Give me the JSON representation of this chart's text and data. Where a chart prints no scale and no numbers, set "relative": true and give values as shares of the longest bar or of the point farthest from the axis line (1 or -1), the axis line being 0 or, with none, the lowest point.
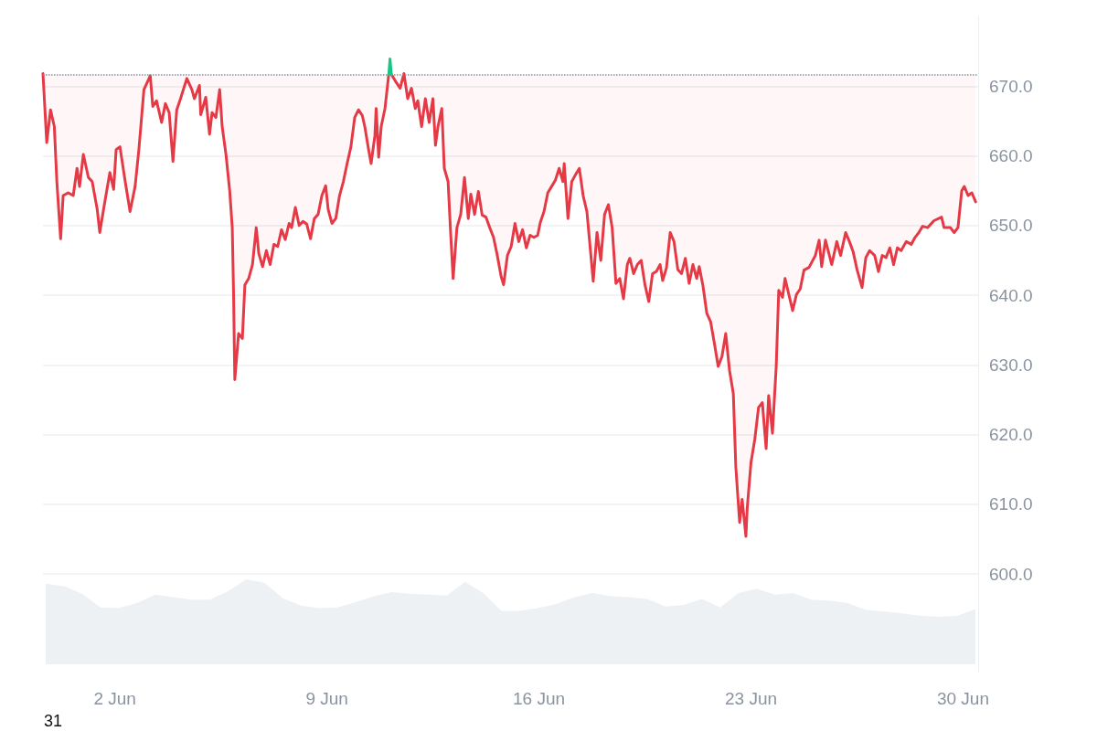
{
  "chart_data": [
    {
      "type": "line",
      "marker": "none",
      "grid": "y",
      "xlim": [
        "--05-30T15:00",
        "--06-30T12:00"
      ],
      "ylim": [
        586,
        680
      ],
      "yticks": [
        {
          "value": 600,
          "label": "600.0"
        },
        {
          "value": 610,
          "label": "610.0"
        },
        {
          "value": 620,
          "label": "620.0"
        },
        {
          "value": 630,
          "label": "630.0"
        },
        {
          "value": 640,
          "label": "640.0"
        },
        {
          "value": 650,
          "label": "650.0"
        },
        {
          "value": 660,
          "label": "660.0"
        },
        {
          "value": 670,
          "label": "670.0"
        }
      ],
      "xticks": [
        {
          "value": "--06-02",
          "label": "2 Jun"
        },
        {
          "value": "--06-09",
          "label": "9 Jun"
        },
        {
          "value": "--06-16",
          "label": "16 Jun"
        },
        {
          "value": "--06-23",
          "label": "23 Jun"
        },
        {
          "value": "--06-30",
          "label": "30 Jun"
        }
      ],
      "annotations": [
        "31"
      ],
      "ref_lines": [
        {
          "axis": "y",
          "value": 671.7,
          "color": "#8a939f",
          "line_style": "dotted"
        }
      ],
      "series": [
        {
          "color": "#e63946",
          "x": [
            "--05-30T15:00",
            "--05-30T18:00",
            "--05-30T21:00",
            "--05-31T00:00",
            "--05-31T02:00",
            "--05-31T05:00",
            "--05-31T07:00",
            "--05-31T11:00",
            "--05-31T15:00",
            "--05-31T18:00",
            "--05-31T20:00",
            "--05-31T23:00",
            "--06-01T03:00",
            "--06-01T06:00",
            "--06-01T10:00",
            "--06-01T12:00",
            "--06-01T15:00",
            "--06-01T20:00",
            "--06-01T23:00",
            "--06-02T01:00",
            "--06-02T04:00",
            "--06-02T08:00",
            "--06-02T12:00",
            "--06-02T16:00",
            "--06-02T19:00",
            "--06-02T23:00",
            "--06-03T04:00",
            "--06-03T06:00",
            "--06-03T09:00",
            "--06-03T13:00",
            "--06-03T16:00",
            "--06-03T19:00",
            "--06-03T22:00",
            "--06-04T01:00",
            "--06-04T04:00",
            "--06-04T09:00",
            "--06-04T13:00",
            "--06-04T15:00",
            "--06-04T19:00",
            "--06-04T20:00",
            "--06-05T00:00",
            "--06-05T03:00",
            "--06-05T05:00",
            "--06-05T08:00",
            "--06-05T11:00",
            "--06-05T13:00",
            "--06-05T16:00",
            "--06-05T19:00",
            "--06-05T21:00",
            "--06-05T22:00",
            "--06-05T23:00",
            "--06-06T02:00",
            "--06-06T05:00",
            "--06-06T07:00",
            "--06-06T10:00",
            "--06-06T13:00",
            "--06-06T16:00",
            "--06-06T18:00",
            "--06-06T21:00",
            "--06-07T00:00",
            "--06-07T03:00",
            "--06-07T06:00",
            "--06-07T09:00",
            "--06-07T12:00",
            "--06-07T15:00",
            "--06-07T18:00",
            "--06-07T20:00",
            "--06-07T23:00",
            "--06-08T02:00",
            "--06-08T05:00",
            "--06-08T08:00",
            "--06-08T11:00",
            "--06-08T14:00",
            "--06-08T17:00",
            "--06-08T20:00",
            "--06-08T23:00",
            "--06-09T01:00",
            "--06-09T04:00",
            "--06-09T07:00",
            "--06-09T10:00",
            "--06-09T13:00",
            "--06-09T16:00",
            "--06-09T19:00",
            "--06-09T22:00",
            "--06-10T01:00",
            "--06-10T04:00",
            "--06-10T06:00",
            "--06-10T09:00",
            "--06-10T11:00",
            "--06-10T14:00",
            "--06-10T15:00",
            "--06-10T17:00",
            "--06-10T19:00",
            "--06-10T22:00",
            "--06-11T01:00",
            "--06-11T02:00",
            "--06-11T03:00",
            "--06-11T07:00",
            "--06-11T10:00",
            "--06-11T13:00",
            "--06-11T16:00",
            "--06-11T19:00",
            "--06-11T22:00",
            "--06-12T00:00",
            "--06-12T03:00",
            "--06-12T06:00",
            "--06-12T09:00",
            "--06-12T12:00",
            "--06-12T14:00",
            "--06-12T16:00",
            "--06-12T19:00",
            "--06-12T21:00",
            "--06-13T00:00",
            "--06-13T02:00",
            "--06-13T04:00",
            "--06-13T07:00",
            "--06-13T10:00",
            "--06-13T13:00",
            "--06-13T16:00",
            "--06-13T18:00",
            "--06-13T21:00",
            "--06-14T00:00",
            "--06-14T03:00",
            "--06-14T06:00",
            "--06-14T09:00",
            "--06-14T12:00",
            "--06-14T15:00",
            "--06-14T18:00",
            "--06-14T20:00",
            "--06-14T23:00",
            "--06-15T02:00",
            "--06-15T05:00",
            "--06-15T08:00",
            "--06-15T11:00",
            "--06-15T14:00",
            "--06-15T17:00",
            "--06-15T20:00",
            "--06-15T23:00",
            "--06-16T01:00",
            "--06-16T04:00",
            "--06-16T07:00",
            "--06-16T10:00",
            "--06-16T13:00",
            "--06-16T16:00",
            "--06-16T19:00",
            "--06-16T20:00",
            "--06-16T23:00",
            "--06-17T02:00",
            "--06-17T05:00",
            "--06-17T08:00",
            "--06-17T11:00",
            "--06-17T14:00",
            "--06-17T17:00",
            "--06-17T19:00",
            "--06-17T22:00",
            "--06-18T01:00",
            "--06-18T04:00",
            "--06-18T07:00",
            "--06-18T10:00",
            "--06-18T13:00",
            "--06-18T16:00",
            "--06-18T19:00",
            "--06-18T22:00",
            "--06-19T00:00",
            "--06-19T03:00",
            "--06-19T06:00",
            "--06-19T09:00",
            "--06-19T12:00",
            "--06-19T15:00",
            "--06-19T18:00",
            "--06-19T21:00",
            "--06-20T00:00",
            "--06-20T02:00",
            "--06-20T05:00",
            "--06-20T08:00",
            "--06-20T11:00",
            "--06-20T14:00",
            "--06-20T17:00",
            "--06-20T20:00",
            "--06-20T23:00",
            "--06-21T02:00",
            "--06-21T05:00",
            "--06-21T07:00",
            "--06-21T10:00",
            "--06-21T13:00",
            "--06-21T16:00",
            "--06-21T19:00",
            "--06-21T22:00",
            "--06-22T01:00",
            "--06-22T04:00",
            "--06-22T07:00",
            "--06-22T10:00",
            "--06-22T12:00",
            "--06-22T15:00",
            "--06-22T17:00",
            "--06-22T20:00",
            "--06-22T21:00",
            "--06-23T00:00",
            "--06-23T03:00",
            "--06-23T06:00",
            "--06-23T09:00",
            "--06-23T12:00",
            "--06-23T14:00",
            "--06-23T17:00",
            "--06-23T20:00",
            "--06-23T22:00",
            "--06-24T01:00",
            "--06-24T03:00",
            "--06-24T06:00",
            "--06-24T09:00",
            "--06-24T12:00",
            "--06-24T15:00",
            "--06-24T18:00",
            "--06-24T22:00",
            "--06-25T03:00",
            "--06-25T06:00",
            "--06-25T08:00",
            "--06-25T11:00",
            "--06-25T16:00",
            "--06-25T20:00",
            "--06-25T23:00",
            "--06-26T03:00",
            "--06-26T06:00",
            "--06-26T09:00",
            "--06-26T12:00",
            "--06-26T16:00",
            "--06-26T19:00",
            "--06-26T22:00",
            "--06-27T02:00",
            "--06-27T05:00",
            "--06-27T08:00",
            "--06-27T11:00",
            "--06-27T14:00",
            "--06-27T17:00",
            "--06-27T20:00",
            "--06-27T23:00",
            "--06-28T03:00",
            "--06-28T07:00",
            "--06-28T10:00",
            "--06-28T13:00",
            "--06-28T16:00",
            "--06-28T20:00",
            "--06-29T01:00",
            "--06-29T07:00",
            "--06-29T09:00",
            "--06-29T14:00",
            "--06-29T17:00",
            "--06-29T20:00",
            "--06-29T23:00",
            "--06-30T01:00",
            "--06-30T04:00",
            "--06-30T07:00",
            "--06-30T10:00"
          ],
          "values": [
            671.8,
            661.9,
            666.6,
            664.2,
            656.3,
            648.1,
            654.3,
            654.7,
            654.3,
            658.2,
            655.6,
            660.2,
            656.9,
            656.3,
            652.3,
            649.0,
            652.3,
            657.6,
            655.2,
            660.9,
            661.3,
            656.5,
            652.0,
            655.6,
            660.9,
            669.5,
            671.5,
            667.1,
            667.9,
            664.8,
            667.5,
            666.2,
            659.2,
            666.6,
            668.2,
            671.1,
            669.5,
            668.2,
            670.1,
            665.9,
            668.4,
            663.1,
            666.2,
            665.5,
            669.5,
            664.2,
            660.2,
            654.9,
            649.7,
            640.4,
            627.9,
            634.5,
            633.8,
            641.5,
            642.4,
            644.4,
            649.7,
            646.0,
            644.1,
            646.4,
            644.4,
            647.3,
            647.0,
            649.4,
            648.0,
            650.3,
            649.7,
            652.6,
            650.0,
            650.6,
            650.2,
            648.1,
            651.0,
            651.6,
            654.3,
            655.7,
            652.3,
            650.3,
            651.0,
            654.3,
            656.3,
            658.9,
            661.3,
            665.5,
            666.6,
            665.8,
            664.2,
            660.9,
            658.9,
            662.9,
            666.8,
            659.8,
            664.2,
            666.8,
            671.7,
            null,
            671.7,
            670.5,
            669.7,
            671.8,
            668.2,
            669.7,
            666.8,
            667.9,
            664.2,
            668.2,
            664.8,
            668.2,
            661.5,
            664.2,
            666.8,
            658.2,
            656.3,
            649.0,
            642.4,
            649.7,
            651.6,
            656.9,
            651.0,
            654.5,
            651.6,
            654.9,
            651.5,
            651.2,
            649.7,
            648.3,
            645.7,
            642.7,
            641.5,
            645.7,
            647.0,
            650.3,
            647.7,
            649.4,
            646.8,
            648.6,
            648.3,
            648.6,
            650.4,
            652.0,
            654.7,
            655.6,
            656.5,
            658.2,
            656.3,
            658.9,
            651.0,
            656.3,
            657.3,
            658.2,
            654.3,
            652.0,
            646.0,
            642.0,
            649.0,
            645.0,
            651.6,
            653.0,
            649.7,
            641.7,
            642.4,
            639.5,
            644.4,
            645.3,
            643.1,
            644.4,
            645.0,
            641.5,
            639.1,
            643.1,
            643.4,
            644.4,
            642.1,
            643.9,
            649.0,
            647.7,
            643.7,
            643.1,
            645.3,
            641.7,
            644.4,
            642.4,
            644.1,
            641.3,
            637.4,
            636.2,
            633.1,
            629.8,
            631.2,
            634.5,
            629.2,
            625.9,
            615.3,
            607.4,
            610.7,
            605.4,
            609.4,
            616.0,
            619.3,
            623.9,
            624.6,
            618.0,
            625.6,
            620.2,
            629.8,
            640.7,
            639.7,
            642.4,
            640.1,
            637.8,
            640.1,
            640.9,
            643.6,
            644.0,
            645.7,
            647.9,
            644.1,
            647.9,
            644.4,
            647.7,
            645.7,
            649.0,
            647.7,
            646.2,
            643.7,
            641.1,
            645.4,
            646.4,
            645.7,
            643.4,
            645.7,
            645.4,
            646.8,
            644.4,
            646.8,
            646.4,
            647.7,
            647.3,
            648.3,
            649.0,
            649.9,
            649.7,
            650.7,
            651.2,
            649.7,
            649.7,
            649.0,
            649.7,
            655.0,
            655.6,
            654.3,
            654.7,
            653.4
          ]
        },
        {
          "color": "#16c784",
          "x": [
            "--06-11T01:00",
            "--06-11T02:00",
            "--06-11T03:00"
          ],
          "values": [
            671.7,
            673.9,
            671.7
          ]
        }
      ]
    },
    {
      "type": "area",
      "relative": true,
      "categories": [
        null,
        null,
        null,
        null,
        null,
        null,
        null,
        null,
        null,
        null,
        null,
        null,
        null,
        null,
        null,
        null,
        null,
        null,
        null,
        null,
        null,
        null,
        null,
        null,
        null,
        null,
        null,
        null,
        null,
        null,
        null,
        null,
        null,
        null,
        null,
        null,
        null,
        null,
        null,
        null,
        null,
        null,
        null,
        null,
        null,
        null,
        null,
        null,
        null,
        null,
        null,
        null
      ],
      "series": [
        {
          "color": "#eef1f4",
          "values": [
            0.95,
            0.92,
            0.83,
            0.67,
            0.66,
            0.72,
            0.82,
            0.79,
            0.76,
            0.76,
            0.86,
            1,
            0.96,
            0.78,
            0.69,
            0.66,
            0.67,
            0.73,
            0.8,
            0.85,
            0.83,
            0.82,
            0.81,
            0.97,
            0.84,
            0.63,
            0.63,
            0.66,
            0.71,
            0.79,
            0.84,
            0.8,
            0.79,
            0.77,
            0.68,
            0.7,
            0.77,
            0.67,
            0.84,
            0.89,
            0.82,
            0.84,
            0.76,
            0.75,
            0.72,
            0.64,
            0.62,
            0.6,
            0.57,
            0.56,
            0.57,
            0.65
          ]
        }
      ]
    }
  ]
}
